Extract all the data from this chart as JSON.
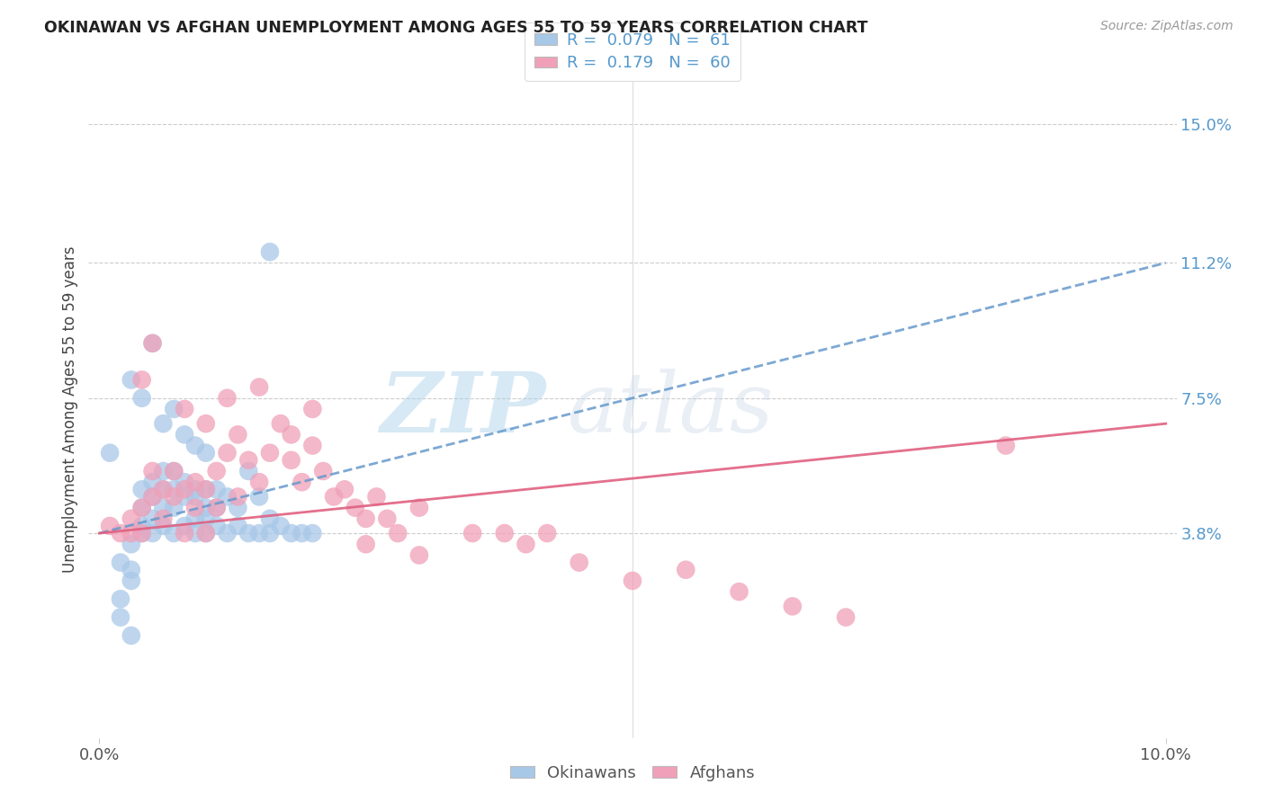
{
  "title": "OKINAWAN VS AFGHAN UNEMPLOYMENT AMONG AGES 55 TO 59 YEARS CORRELATION CHART",
  "source": "Source: ZipAtlas.com",
  "ylabel": "Unemployment Among Ages 55 to 59 years",
  "xlim": [
    -0.001,
    0.101
  ],
  "ylim": [
    -0.018,
    0.162
  ],
  "xticks": [
    0.0,
    0.1
  ],
  "xticklabels": [
    "0.0%",
    "10.0%"
  ],
  "right_yticks": [
    0.038,
    0.075,
    0.112,
    0.15
  ],
  "right_yticklabels": [
    "3.8%",
    "7.5%",
    "11.2%",
    "15.0%"
  ],
  "grid_color": "#cccccc",
  "background_color": "#ffffff",
  "okinawan_color": "#a8c8e8",
  "afghan_color": "#f0a0b8",
  "okinawan_line_color": "#6699cc",
  "afghan_line_color": "#e06080",
  "legend_R_okinawan": "0.079",
  "legend_N_okinawan": "61",
  "legend_R_afghan": "0.179",
  "legend_N_afghan": "60",
  "watermark_zip": "ZIP",
  "watermark_atlas": "atlas",
  "ok_line_x": [
    0.0,
    0.1
  ],
  "ok_line_y": [
    0.038,
    0.112
  ],
  "af_line_x": [
    0.0,
    0.1
  ],
  "af_line_y": [
    0.038,
    0.068
  ],
  "okinawan_x": [
    0.001,
    0.002,
    0.002,
    0.003,
    0.003,
    0.003,
    0.004,
    0.004,
    0.004,
    0.004,
    0.005,
    0.005,
    0.005,
    0.005,
    0.006,
    0.006,
    0.006,
    0.006,
    0.007,
    0.007,
    0.007,
    0.007,
    0.008,
    0.008,
    0.008,
    0.009,
    0.009,
    0.009,
    0.009,
    0.01,
    0.01,
    0.01,
    0.01,
    0.011,
    0.011,
    0.011,
    0.012,
    0.012,
    0.013,
    0.013,
    0.014,
    0.014,
    0.015,
    0.015,
    0.016,
    0.016,
    0.017,
    0.018,
    0.019,
    0.02,
    0.003,
    0.004,
    0.005,
    0.006,
    0.007,
    0.008,
    0.009,
    0.01,
    0.002,
    0.003,
    0.016
  ],
  "okinawan_y": [
    0.06,
    0.03,
    0.02,
    0.025,
    0.028,
    0.035,
    0.04,
    0.045,
    0.05,
    0.038,
    0.042,
    0.048,
    0.052,
    0.038,
    0.045,
    0.05,
    0.055,
    0.04,
    0.045,
    0.05,
    0.055,
    0.038,
    0.048,
    0.052,
    0.04,
    0.042,
    0.048,
    0.05,
    0.038,
    0.045,
    0.05,
    0.042,
    0.038,
    0.05,
    0.045,
    0.04,
    0.048,
    0.038,
    0.045,
    0.04,
    0.055,
    0.038,
    0.048,
    0.038,
    0.042,
    0.038,
    0.04,
    0.038,
    0.038,
    0.038,
    0.08,
    0.075,
    0.09,
    0.068,
    0.072,
    0.065,
    0.062,
    0.06,
    0.015,
    0.01,
    0.115
  ],
  "afghan_x": [
    0.001,
    0.002,
    0.003,
    0.003,
    0.004,
    0.004,
    0.005,
    0.005,
    0.006,
    0.006,
    0.007,
    0.007,
    0.008,
    0.008,
    0.009,
    0.009,
    0.01,
    0.01,
    0.011,
    0.011,
    0.012,
    0.013,
    0.013,
    0.014,
    0.015,
    0.016,
    0.017,
    0.018,
    0.019,
    0.02,
    0.021,
    0.022,
    0.023,
    0.024,
    0.025,
    0.026,
    0.027,
    0.028,
    0.03,
    0.035,
    0.038,
    0.04,
    0.042,
    0.045,
    0.05,
    0.055,
    0.06,
    0.065,
    0.07,
    0.085,
    0.004,
    0.005,
    0.008,
    0.01,
    0.012,
    0.015,
    0.018,
    0.02,
    0.025,
    0.03
  ],
  "afghan_y": [
    0.04,
    0.038,
    0.042,
    0.038,
    0.045,
    0.038,
    0.048,
    0.055,
    0.05,
    0.042,
    0.048,
    0.055,
    0.05,
    0.038,
    0.052,
    0.045,
    0.05,
    0.038,
    0.055,
    0.045,
    0.06,
    0.065,
    0.048,
    0.058,
    0.052,
    0.06,
    0.068,
    0.058,
    0.052,
    0.062,
    0.055,
    0.048,
    0.05,
    0.045,
    0.042,
    0.048,
    0.042,
    0.038,
    0.045,
    0.038,
    0.038,
    0.035,
    0.038,
    0.03,
    0.025,
    0.028,
    0.022,
    0.018,
    0.015,
    0.062,
    0.08,
    0.09,
    0.072,
    0.068,
    0.075,
    0.078,
    0.065,
    0.072,
    0.035,
    0.032
  ]
}
